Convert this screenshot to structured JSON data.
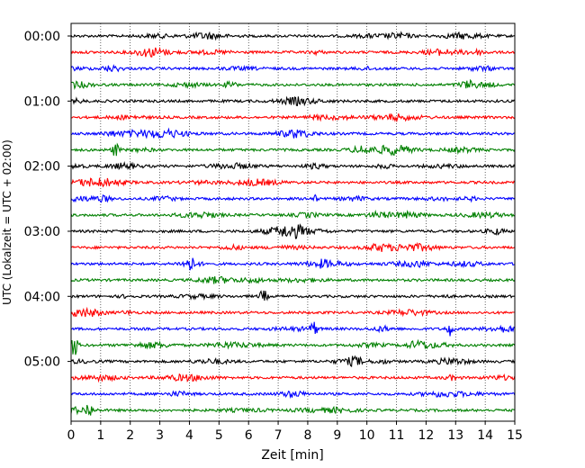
{
  "chart_data": {
    "type": "line",
    "xlabel": "Zeit  [min]",
    "ylabel": "UTC (Lokalzeit = UTC + 02:00)",
    "xlim": [
      0,
      15
    ],
    "x_ticks": [
      "0",
      "1",
      "2",
      "3",
      "4",
      "5",
      "6",
      "7",
      "8",
      "9",
      "10",
      "11",
      "12",
      "13",
      "14",
      "15"
    ],
    "vertical_grid": "dotted, every 1 min",
    "row_minutes": 15,
    "y_tick_labels": [
      {
        "row": 0,
        "text": "00:00"
      },
      {
        "row": 4,
        "text": "01:00"
      },
      {
        "row": 8,
        "text": "02:00"
      },
      {
        "row": 12,
        "text": "03:00"
      },
      {
        "row": 16,
        "text": "04:00"
      },
      {
        "row": 20,
        "text": "05:00"
      }
    ],
    "color_cycle": [
      "#000000",
      "#ff0000",
      "#0000ff",
      "#008000"
    ],
    "rows": [
      {
        "start": "00:00",
        "color": "#000000"
      },
      {
        "start": "00:15",
        "color": "#ff0000"
      },
      {
        "start": "00:30",
        "color": "#0000ff"
      },
      {
        "start": "00:45",
        "color": "#008000"
      },
      {
        "start": "01:00",
        "color": "#000000"
      },
      {
        "start": "01:15",
        "color": "#ff0000"
      },
      {
        "start": "01:30",
        "color": "#0000ff"
      },
      {
        "start": "01:45",
        "color": "#008000"
      },
      {
        "start": "02:00",
        "color": "#000000"
      },
      {
        "start": "02:15",
        "color": "#ff0000"
      },
      {
        "start": "02:30",
        "color": "#0000ff"
      },
      {
        "start": "02:45",
        "color": "#008000"
      },
      {
        "start": "03:00",
        "color": "#000000"
      },
      {
        "start": "03:15",
        "color": "#ff0000"
      },
      {
        "start": "03:30",
        "color": "#0000ff"
      },
      {
        "start": "03:45",
        "color": "#008000"
      },
      {
        "start": "04:00",
        "color": "#000000"
      },
      {
        "start": "04:15",
        "color": "#ff0000"
      },
      {
        "start": "04:30",
        "color": "#0000ff"
      },
      {
        "start": "04:45",
        "color": "#008000"
      },
      {
        "start": "05:00",
        "color": "#000000"
      },
      {
        "start": "05:15",
        "color": "#ff0000"
      },
      {
        "start": "05:30",
        "color": "#0000ff"
      },
      {
        "start": "05:45",
        "color": "#008000"
      }
    ],
    "events": [
      {
        "row": 19,
        "x": 0.1,
        "amplitude": "large"
      },
      {
        "row": 16,
        "x": 6.5,
        "amplitude": "medium"
      },
      {
        "row": 10,
        "x": 8.2,
        "amplitude": "small"
      },
      {
        "row": 18,
        "x": 8.2,
        "amplitude": "medium"
      },
      {
        "row": 18,
        "x": 12.8,
        "amplitude": "medium"
      },
      {
        "row": 23,
        "x": 0.6,
        "amplitude": "medium"
      },
      {
        "row": 14,
        "x": 4.0,
        "amplitude": "medium"
      },
      {
        "row": 7,
        "x": 1.5,
        "amplitude": "medium"
      }
    ]
  }
}
